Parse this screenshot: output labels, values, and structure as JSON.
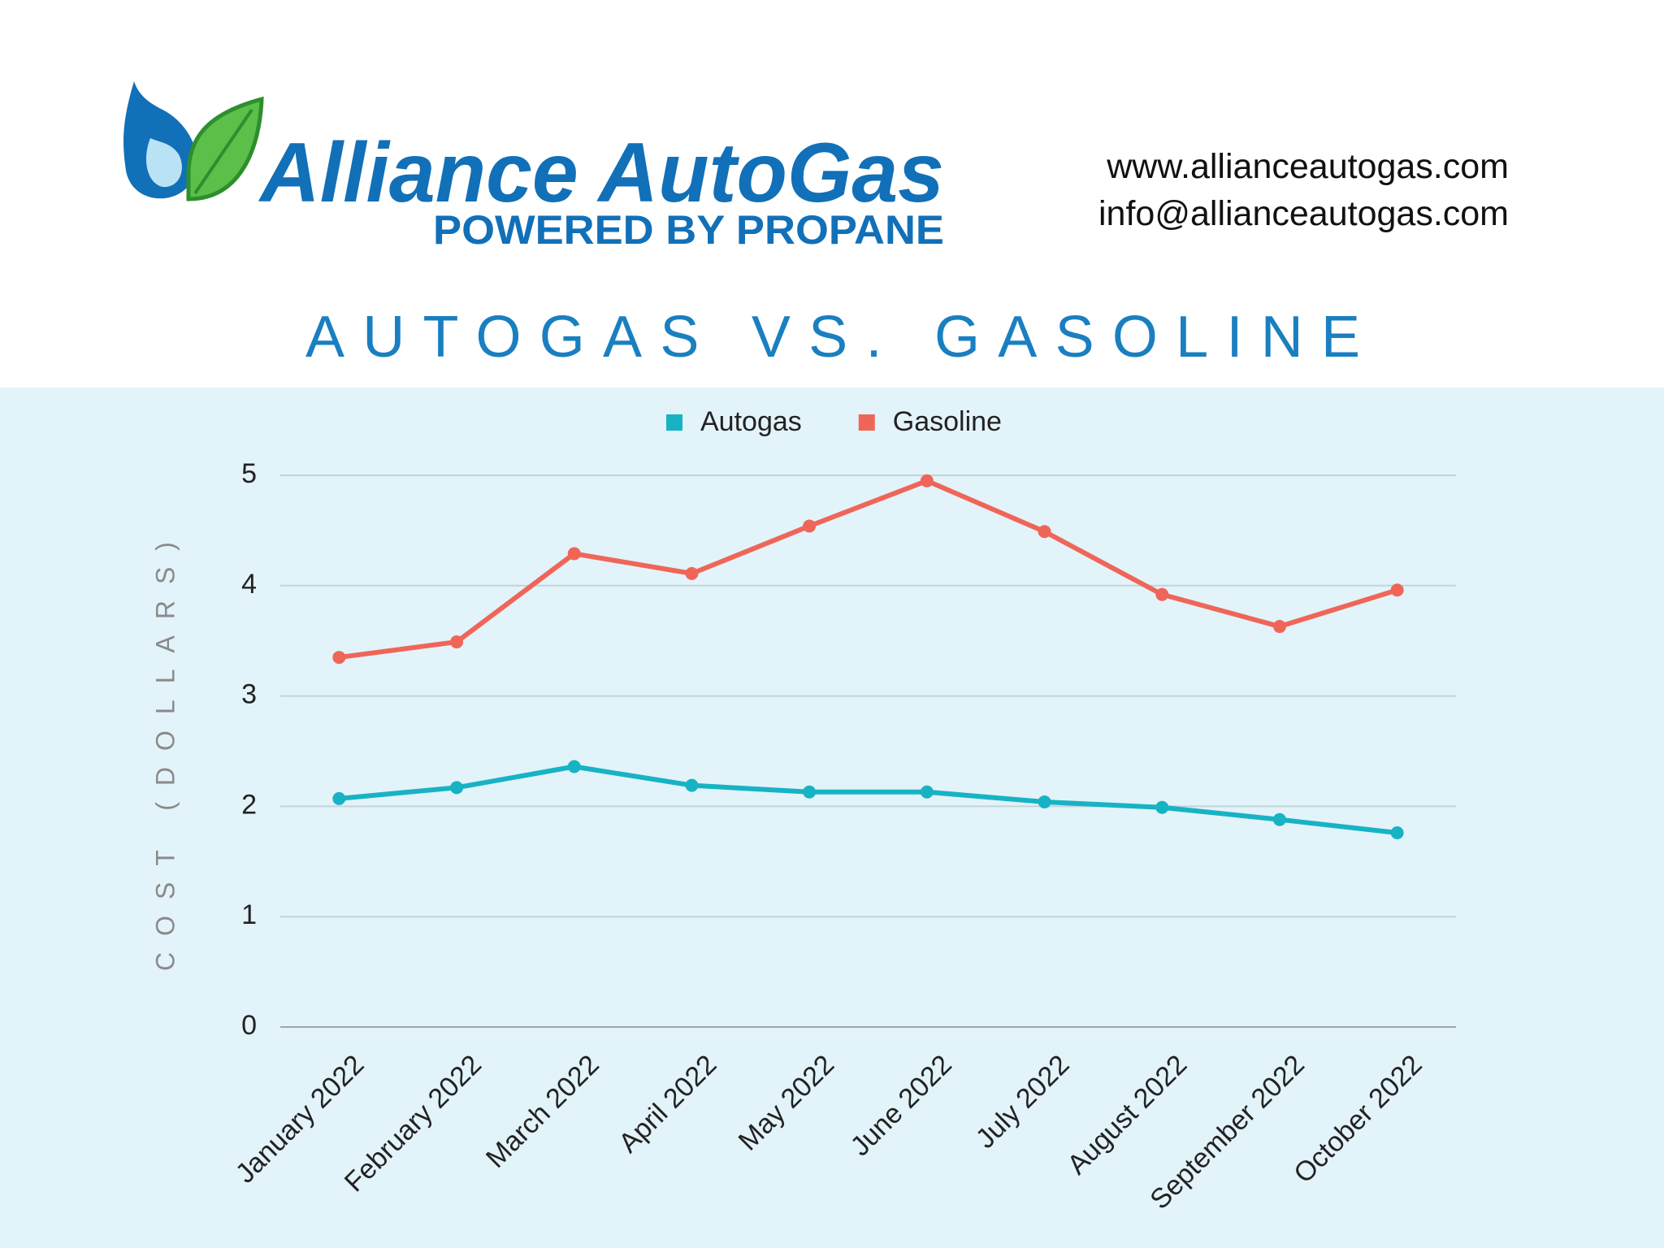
{
  "header": {
    "brand": "Alliance AutoGas",
    "tagline": "POWERED BY PROPANE",
    "website": "www.allianceautogas.com",
    "email": "info@allianceautogas.com"
  },
  "chart_data": {
    "type": "line",
    "title": "AUTOGAS VS. GASOLINE",
    "y_label": "COST (DOLLARS)",
    "categories": [
      "January 2022",
      "February 2022",
      "March 2022",
      "April 2022",
      "May 2022",
      "June 2022",
      "July 2022",
      "August 2022",
      "September 2022",
      "October 2022"
    ],
    "series": [
      {
        "name": "Autogas",
        "color": "#17b3c4",
        "values": [
          2.07,
          2.17,
          2.36,
          2.19,
          2.13,
          2.13,
          2.04,
          1.99,
          1.88,
          1.76
        ]
      },
      {
        "name": "Gasoline",
        "color": "#ef6658",
        "values": [
          3.35,
          3.49,
          4.29,
          4.11,
          4.54,
          4.95,
          4.49,
          3.92,
          3.63,
          3.96
        ]
      }
    ],
    "ylim": [
      0,
      5
    ],
    "yticks": [
      0,
      1,
      2,
      3,
      4,
      5
    ],
    "grid": true,
    "legend": "top"
  }
}
